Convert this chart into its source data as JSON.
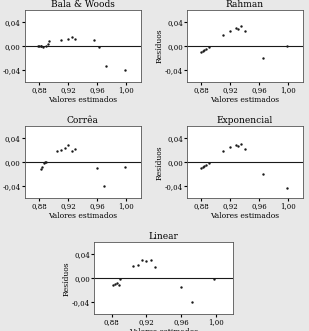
{
  "plots": [
    {
      "title": "Bala & Woods",
      "x": [
        0.878,
        0.88,
        0.882,
        0.883,
        0.885,
        0.89,
        0.892,
        0.894,
        0.91,
        0.92,
        0.925,
        0.93,
        0.955,
        0.962,
        0.972,
        0.998
      ],
      "y": [
        0.0,
        0.0,
        0.001,
        0.0,
        -0.001,
        0.0,
        0.003,
        0.008,
        0.01,
        0.012,
        0.015,
        0.012,
        0.01,
        -0.002,
        -0.032,
        -0.04
      ]
    },
    {
      "title": "Rahman",
      "x": [
        0.88,
        0.882,
        0.884,
        0.886,
        0.89,
        0.91,
        0.92,
        0.928,
        0.93,
        0.935,
        0.94,
        0.965,
        0.998
      ],
      "y": [
        -0.01,
        -0.008,
        -0.006,
        -0.004,
        -0.002,
        0.018,
        0.025,
        0.03,
        0.028,
        0.033,
        0.025,
        -0.02,
        0.0
      ]
    },
    {
      "title": "Corrêa",
      "x": [
        0.882,
        0.884,
        0.886,
        0.888,
        0.89,
        0.905,
        0.91,
        0.915,
        0.92,
        0.925,
        0.93,
        0.96,
        0.97,
        0.998
      ],
      "y": [
        -0.012,
        -0.008,
        -0.002,
        0.0,
        0.0,
        0.018,
        0.02,
        0.024,
        0.028,
        0.018,
        0.022,
        -0.01,
        -0.04,
        -0.008
      ]
    },
    {
      "title": "Exponencial",
      "x": [
        0.88,
        0.882,
        0.884,
        0.886,
        0.89,
        0.91,
        0.92,
        0.928,
        0.93,
        0.935,
        0.94,
        0.965,
        0.998
      ],
      "y": [
        -0.01,
        -0.008,
        -0.006,
        -0.004,
        -0.002,
        0.018,
        0.025,
        0.028,
        0.027,
        0.03,
        0.022,
        -0.02,
        -0.042
      ]
    },
    {
      "title": "Linear",
      "x": [
        0.882,
        0.884,
        0.886,
        0.888,
        0.89,
        0.905,
        0.91,
        0.915,
        0.92,
        0.925,
        0.93,
        0.96,
        0.972,
        0.998
      ],
      "y": [
        -0.012,
        -0.01,
        -0.008,
        -0.012,
        -0.002,
        0.02,
        0.022,
        0.03,
        0.028,
        0.03,
        0.018,
        -0.015,
        -0.04,
        -0.002
      ]
    }
  ],
  "xlim": [
    0.86,
    1.02
  ],
  "xticks": [
    0.88,
    0.92,
    0.96,
    1.0
  ],
  "xticklabels": [
    "0,88",
    "0,92",
    "0,96",
    "1,00"
  ],
  "ylim": [
    -0.06,
    0.06
  ],
  "yticks": [
    -0.04,
    0.0,
    0.04
  ],
  "yticklabels": [
    "-0,04",
    "0,00",
    "0,04"
  ],
  "xlabel": "Valores estimados",
  "ylabel": "Resíduos",
  "marker_color": "#1a1a1a",
  "line_color": "#1a1a1a",
  "bg_color": "#e8e8e8",
  "plot_bg": "#ffffff",
  "title_fontsize": 6.5,
  "label_fontsize": 5.5,
  "tick_fontsize": 5.0,
  "marker_size": 3
}
